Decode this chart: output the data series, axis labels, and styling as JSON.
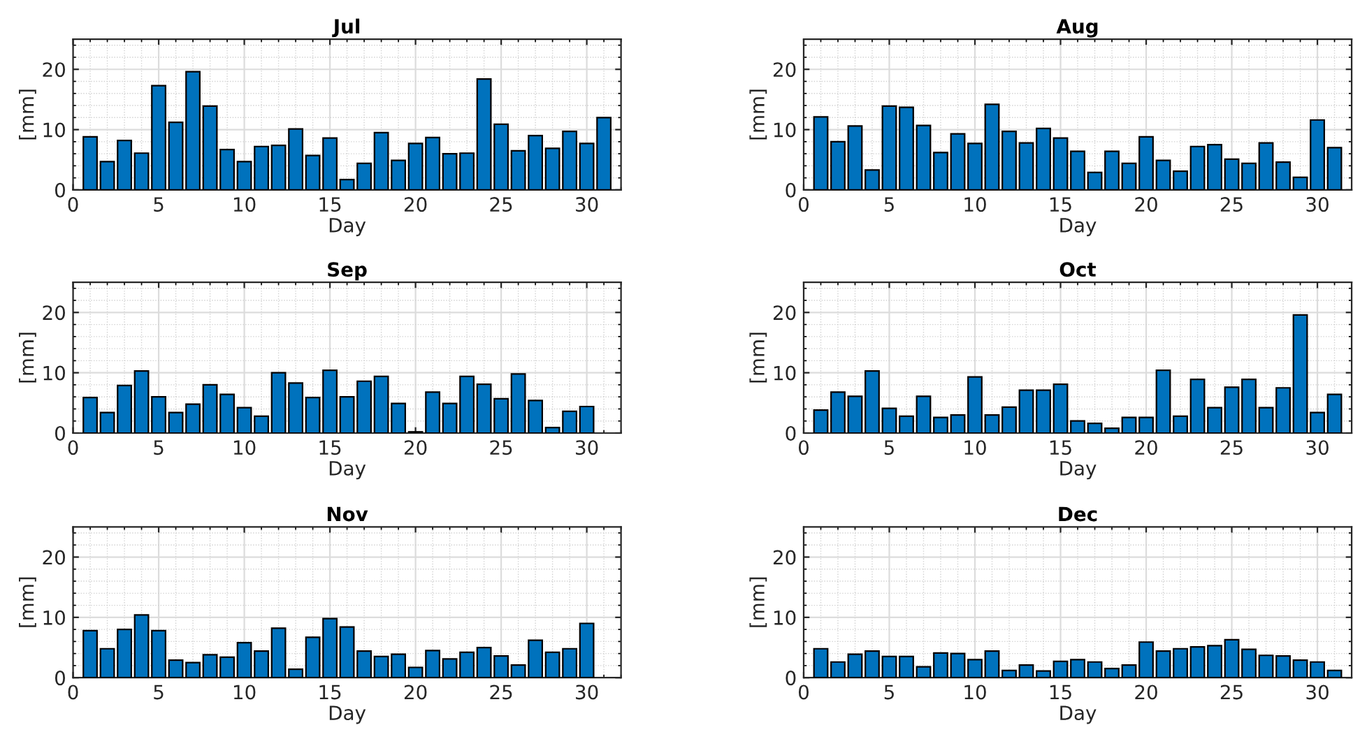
{
  "chart_data": [
    {
      "type": "bar",
      "title": "Jul",
      "xlabel": "Day",
      "ylabel": "[mm]",
      "x": [
        1,
        2,
        3,
        4,
        5,
        6,
        7,
        8,
        9,
        10,
        11,
        12,
        13,
        14,
        15,
        16,
        17,
        18,
        19,
        20,
        21,
        22,
        23,
        24,
        25,
        26,
        27,
        28,
        29,
        30,
        31
      ],
      "values": [
        8.8,
        4.7,
        8.2,
        6.1,
        17.3,
        11.2,
        19.6,
        13.9,
        6.7,
        4.7,
        7.2,
        7.4,
        10.1,
        5.7,
        8.6,
        1.7,
        4.4,
        9.5,
        4.9,
        7.7,
        8.7,
        6.0,
        6.1,
        18.4,
        10.9,
        6.5,
        9.0,
        6.9,
        9.7,
        7.7,
        12.0
      ],
      "color": "#0072bd",
      "xlim": [
        0,
        32
      ],
      "xticks": [
        0,
        5,
        10,
        15,
        20,
        25,
        30
      ],
      "ylim": [
        0,
        25
      ],
      "yticks": [
        0,
        10,
        20
      ],
      "grid": true
    },
    {
      "type": "bar",
      "title": "Aug",
      "xlabel": "Day",
      "ylabel": "[mm]",
      "x": [
        1,
        2,
        3,
        4,
        5,
        6,
        7,
        8,
        9,
        10,
        11,
        12,
        13,
        14,
        15,
        16,
        17,
        18,
        19,
        20,
        21,
        22,
        23,
        24,
        25,
        26,
        27,
        28,
        29,
        30,
        31
      ],
      "values": [
        12.1,
        8.0,
        10.6,
        3.3,
        13.9,
        13.7,
        10.7,
        6.2,
        9.3,
        7.7,
        14.2,
        9.7,
        7.8,
        10.2,
        8.6,
        6.4,
        2.9,
        6.4,
        4.4,
        8.8,
        4.9,
        3.1,
        7.2,
        7.5,
        5.1,
        4.4,
        7.8,
        4.6,
        2.1,
        11.6,
        7.0
      ],
      "color": "#0072bd",
      "xlim": [
        0,
        32
      ],
      "xticks": [
        0,
        5,
        10,
        15,
        20,
        25,
        30
      ],
      "ylim": [
        0,
        25
      ],
      "yticks": [
        0,
        10,
        20
      ],
      "grid": true
    },
    {
      "type": "bar",
      "title": "Sep",
      "xlabel": "Day",
      "ylabel": "[mm]",
      "x": [
        1,
        2,
        3,
        4,
        5,
        6,
        7,
        8,
        9,
        10,
        11,
        12,
        13,
        14,
        15,
        16,
        17,
        18,
        19,
        20,
        21,
        22,
        23,
        24,
        25,
        26,
        27,
        28,
        29,
        30
      ],
      "values": [
        5.9,
        3.4,
        7.9,
        10.3,
        6.0,
        3.4,
        4.8,
        8.0,
        6.4,
        4.2,
        2.8,
        10.0,
        8.3,
        5.9,
        10.4,
        6.0,
        8.6,
        9.4,
        4.9,
        0.2,
        6.8,
        4.9,
        9.4,
        8.1,
        5.7,
        9.8,
        5.4,
        0.9,
        3.6,
        4.4
      ],
      "color": "#0072bd",
      "xlim": [
        0,
        32
      ],
      "xticks": [
        0,
        5,
        10,
        15,
        20,
        25,
        30
      ],
      "ylim": [
        0,
        25
      ],
      "yticks": [
        0,
        10,
        20
      ],
      "grid": true
    },
    {
      "type": "bar",
      "title": "Oct",
      "xlabel": "Day",
      "ylabel": "[mm]",
      "x": [
        1,
        2,
        3,
        4,
        5,
        6,
        7,
        8,
        9,
        10,
        11,
        12,
        13,
        14,
        15,
        16,
        17,
        18,
        19,
        20,
        21,
        22,
        23,
        24,
        25,
        26,
        27,
        28,
        29,
        30,
        31
      ],
      "values": [
        3.8,
        6.8,
        6.1,
        10.3,
        4.1,
        2.8,
        6.1,
        2.6,
        3.0,
        9.3,
        3.0,
        4.3,
        7.1,
        7.1,
        8.1,
        2.0,
        1.6,
        0.8,
        2.6,
        2.6,
        10.4,
        2.8,
        8.9,
        4.2,
        7.6,
        8.9,
        4.2,
        7.5,
        19.6,
        3.4,
        6.4
      ],
      "color": "#0072bd",
      "xlim": [
        0,
        32
      ],
      "xticks": [
        0,
        5,
        10,
        15,
        20,
        25,
        30
      ],
      "ylim": [
        0,
        25
      ],
      "yticks": [
        0,
        10,
        20
      ],
      "grid": true
    },
    {
      "type": "bar",
      "title": "Nov",
      "xlabel": "Day",
      "ylabel": "[mm]",
      "x": [
        1,
        2,
        3,
        4,
        5,
        6,
        7,
        8,
        9,
        10,
        11,
        12,
        13,
        14,
        15,
        16,
        17,
        18,
        19,
        20,
        21,
        22,
        23,
        24,
        25,
        26,
        27,
        28,
        29,
        30
      ],
      "values": [
        7.8,
        4.8,
        8.0,
        10.4,
        7.8,
        2.9,
        2.5,
        3.8,
        3.4,
        5.8,
        4.4,
        8.2,
        1.4,
        6.7,
        9.8,
        8.4,
        4.4,
        3.5,
        3.9,
        1.7,
        4.5,
        3.1,
        4.2,
        5.0,
        3.6,
        2.1,
        6.2,
        4.2,
        4.8,
        9.0
      ],
      "color": "#0072bd",
      "xlim": [
        0,
        32
      ],
      "xticks": [
        0,
        5,
        10,
        15,
        20,
        25,
        30
      ],
      "ylim": [
        0,
        25
      ],
      "yticks": [
        0,
        10,
        20
      ],
      "grid": true
    },
    {
      "type": "bar",
      "title": "Dec",
      "xlabel": "Day",
      "ylabel": "[mm]",
      "x": [
        1,
        2,
        3,
        4,
        5,
        6,
        7,
        8,
        9,
        10,
        11,
        12,
        13,
        14,
        15,
        16,
        17,
        18,
        19,
        20,
        21,
        22,
        23,
        24,
        25,
        26,
        27,
        28,
        29,
        30,
        31
      ],
      "values": [
        4.8,
        2.6,
        3.9,
        4.4,
        3.5,
        3.5,
        1.8,
        4.1,
        4.0,
        3.0,
        4.4,
        1.2,
        2.1,
        1.1,
        2.7,
        3.0,
        2.6,
        1.5,
        2.1,
        5.9,
        4.4,
        4.8,
        5.1,
        5.3,
        6.3,
        4.7,
        3.7,
        3.6,
        2.9,
        2.6,
        1.2
      ],
      "color": "#0072bd",
      "xlim": [
        0,
        32
      ],
      "xticks": [
        0,
        5,
        10,
        15,
        20,
        25,
        30
      ],
      "ylim": [
        0,
        25
      ],
      "yticks": [
        0,
        10,
        20
      ],
      "grid": true
    }
  ]
}
